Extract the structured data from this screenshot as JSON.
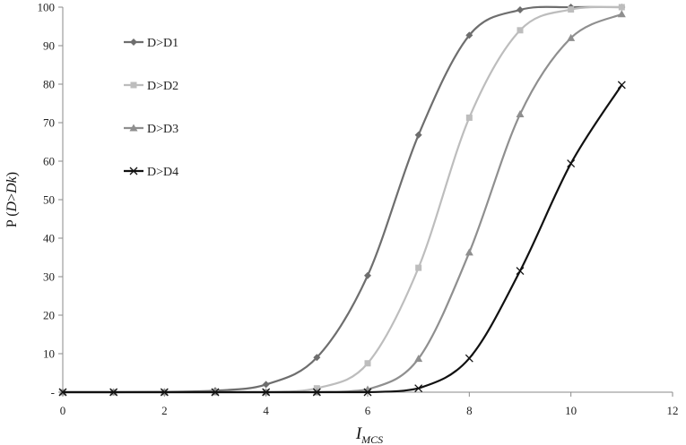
{
  "chart_data": {
    "type": "line",
    "title": "",
    "xlabel": {
      "main": "I",
      "sub": "MCS"
    },
    "ylabel": {
      "prefix": "P (",
      "var1": "D",
      "op": ">",
      "var2": "Dk",
      "suffix": ")"
    },
    "xlim": [
      0,
      12
    ],
    "ylim": [
      0,
      100
    ],
    "x_ticks": [
      "0",
      "2",
      "4",
      "6",
      "8",
      "10",
      "12"
    ],
    "y_ticks": [
      "-",
      "10",
      "20",
      "30",
      "40",
      "50",
      "60",
      "70",
      "80",
      "90",
      "100"
    ],
    "grid": false,
    "legend_position": "top-left",
    "x": [
      0,
      1,
      2,
      3,
      4,
      5,
      6,
      7,
      8,
      9,
      10,
      11
    ],
    "series": [
      {
        "name": "D>D1",
        "color": "#6e6e6e",
        "marker": "diamond",
        "values": [
          0,
          0,
          0.1,
          0.4,
          2,
          9,
          30.3,
          66.8,
          92.7,
          99.3,
          100,
          100
        ]
      },
      {
        "name": "D>D2",
        "color": "#bdbdbd",
        "marker": "square",
        "values": [
          0,
          0,
          0,
          0,
          0,
          1,
          7.5,
          32.3,
          71.3,
          94,
          99.4,
          100
        ]
      },
      {
        "name": "D>D3",
        "color": "#8f8f8f",
        "marker": "triangle",
        "values": [
          0,
          0,
          0,
          0,
          0,
          0,
          0.7,
          8.7,
          36.3,
          72.2,
          92,
          98.2
        ]
      },
      {
        "name": "D>D4",
        "color": "#111111",
        "marker": "x",
        "values": [
          0,
          0,
          0,
          0,
          0,
          0,
          0,
          1,
          8.8,
          31.5,
          59.4,
          79.8
        ]
      }
    ]
  }
}
